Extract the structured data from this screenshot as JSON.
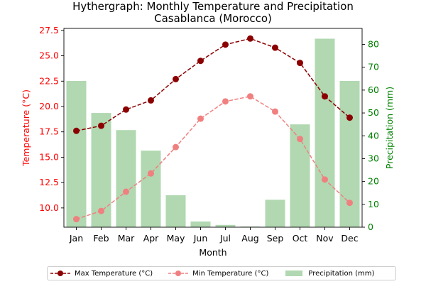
{
  "chart_data": {
    "type": "bar+line",
    "title": "Hythergraph: Monthly Temperature and Precipitation",
    "subtitle": "Casablanca (Morocco)",
    "xlabel": "Month",
    "ylabel_left": "Temperature (°C)",
    "ylabel_right": "Precipitation (mm)",
    "categories": [
      "Jan",
      "Feb",
      "Mar",
      "Apr",
      "May",
      "Jun",
      "Jul",
      "Aug",
      "Sep",
      "Oct",
      "Nov",
      "Dec"
    ],
    "ylim_left": [
      8.1,
      27.7
    ],
    "ylim_right": [
      0,
      87
    ],
    "yticks_left": [
      "10.0",
      "12.5",
      "15.0",
      "17.5",
      "20.0",
      "22.5",
      "25.0",
      "27.5"
    ],
    "yticks_right": [
      "0",
      "10",
      "20",
      "30",
      "40",
      "50",
      "60",
      "70",
      "80"
    ],
    "series": [
      {
        "name": "Max Temperature (°C)",
        "kind": "line",
        "axis": "left",
        "color": "#8b0000",
        "style": "dashed",
        "values": [
          17.6,
          18.1,
          19.7,
          20.6,
          22.7,
          24.5,
          26.1,
          26.7,
          25.8,
          24.3,
          21.0,
          18.9
        ]
      },
      {
        "name": "Min Temperature (°C)",
        "kind": "line",
        "axis": "left",
        "color": "#f08080",
        "style": "dashed",
        "values": [
          8.9,
          9.7,
          11.6,
          13.4,
          16.0,
          18.8,
          20.5,
          21.0,
          19.5,
          16.8,
          12.8,
          10.5
        ]
      },
      {
        "name": "Precipitation (mm)",
        "kind": "bar",
        "axis": "right",
        "color": "#b1d8b1",
        "values": [
          64,
          50,
          42.5,
          33.5,
          14,
          2.5,
          1,
          0.3,
          12,
          45,
          82.5,
          64
        ]
      }
    ],
    "legend_position": "bottom-center",
    "grid": false
  }
}
